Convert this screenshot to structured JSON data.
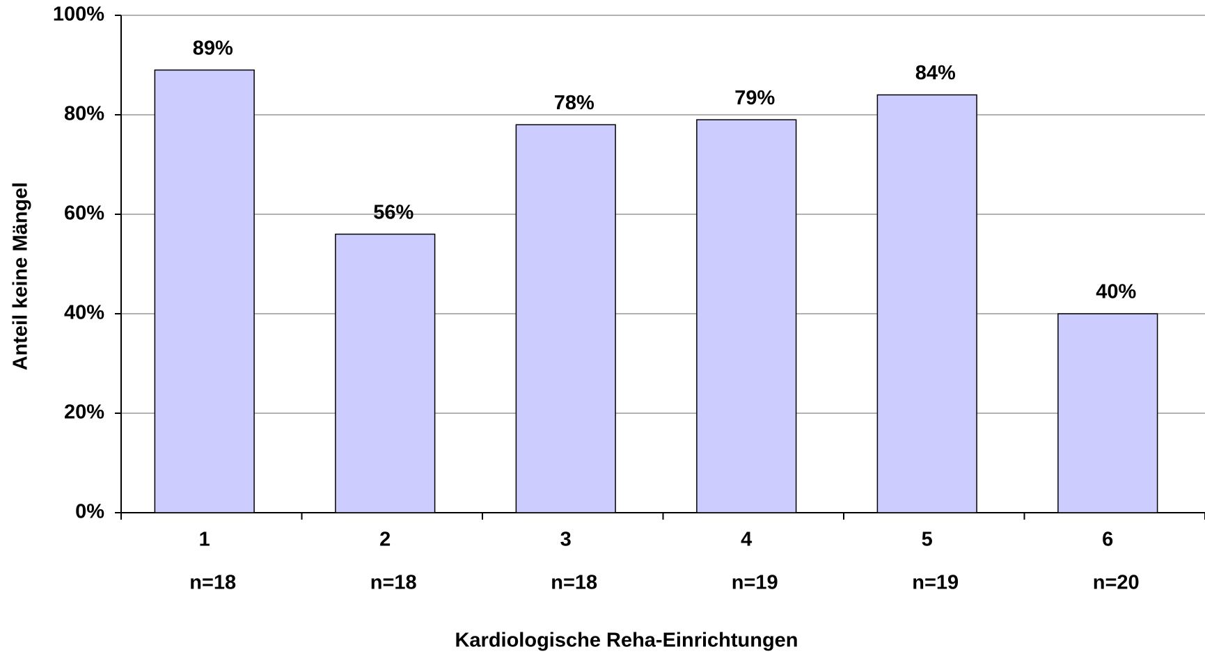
{
  "chart_data": {
    "type": "bar",
    "categories": [
      "1",
      "2",
      "3",
      "4",
      "5",
      "6"
    ],
    "sample_sizes": [
      "n=18",
      "n=18",
      "n=18",
      "n=19",
      "n=19",
      "n=20"
    ],
    "values": [
      89,
      56,
      78,
      79,
      84,
      40
    ],
    "value_labels": [
      "89%",
      "56%",
      "78%",
      "79%",
      "84%",
      "40%"
    ],
    "color": "#ccccff",
    "ylim": [
      0,
      100
    ],
    "yticks": [
      {
        "value": 0,
        "label": "0%"
      },
      {
        "value": 20,
        "label": "20%"
      },
      {
        "value": 40,
        "label": "40%"
      },
      {
        "value": 60,
        "label": "60%"
      },
      {
        "value": 80,
        "label": "80%"
      },
      {
        "value": 100,
        "label": "100%"
      }
    ],
    "grid": true,
    "y_label": "Anteil keine Mängel",
    "x_label": "Kardiologische Reha-Einrichtungen"
  }
}
